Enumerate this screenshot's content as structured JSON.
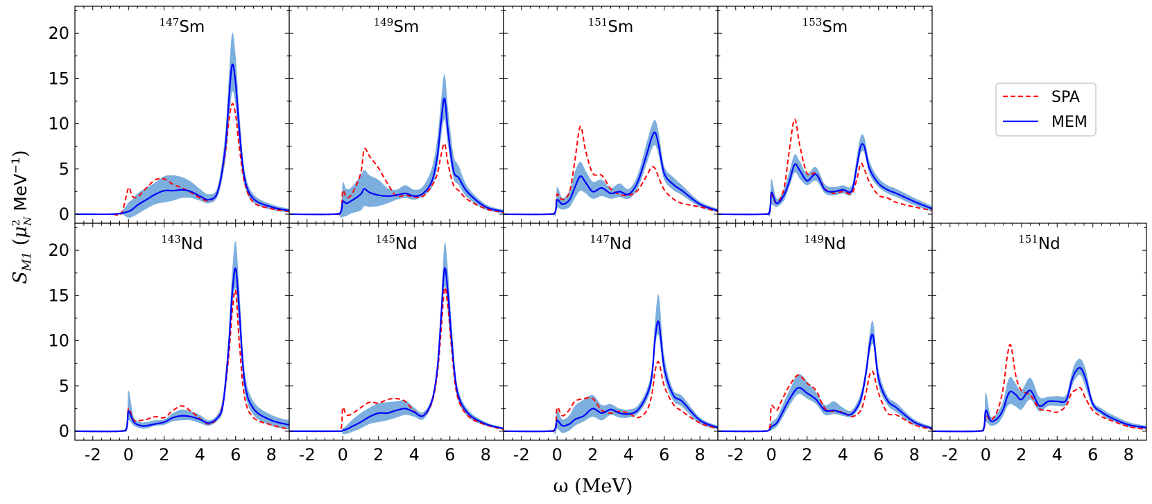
{
  "figure": {
    "xlabel": "ω (MeV)",
    "ylabel": "S_M1 (μ_N² MeV⁻¹)",
    "legend": [
      {
        "name": "SPA",
        "color": "#ff0000",
        "style": "dashed"
      },
      {
        "name": "MEM",
        "color": "#0000ff",
        "style": "solid"
      }
    ],
    "band_color": "#5b9bd5"
  },
  "chart_data": {
    "type": "line",
    "xlim": [
      -3,
      9
    ],
    "ylim": [
      -1,
      23
    ],
    "xticks": [
      -2,
      0,
      2,
      4,
      6,
      8
    ],
    "yticks": [
      0,
      5,
      10,
      15,
      20
    ],
    "legend_position": "right of top row",
    "panels": [
      {
        "nucleus": "Sm",
        "A": "147",
        "x": [
          -3,
          -1,
          -0.4,
          0,
          0.2,
          0.5,
          1,
          1.5,
          2,
          2.5,
          3,
          3.5,
          4,
          4.5,
          5,
          5.4,
          5.6,
          5.8,
          6,
          6.2,
          6.5,
          7,
          8,
          9
        ],
        "spa": [
          0,
          0,
          0.1,
          2.9,
          2.0,
          1.9,
          2.9,
          3.8,
          3.9,
          3.3,
          2.9,
          2.4,
          1.8,
          1.5,
          2.5,
          6.5,
          10,
          12.2,
          11,
          7.5,
          3.5,
          1.3,
          0.6,
          0.3
        ],
        "mem": [
          0,
          0,
          0.1,
          0.3,
          0.5,
          1,
          1.6,
          2.2,
          2.6,
          2.6,
          2.7,
          2.5,
          2.0,
          1.6,
          2.5,
          7,
          12,
          16.5,
          14.5,
          9.5,
          4,
          1.7,
          0.8,
          0.4
        ],
        "lo": [
          0,
          0,
          0,
          -0.4,
          -0.3,
          0,
          0.6,
          1.1,
          1.3,
          1.5,
          1.8,
          1.8,
          1.5,
          1.2,
          2,
          5.6,
          9.5,
          13.5,
          12,
          7.8,
          3.2,
          1.3,
          0.5,
          0.2
        ],
        "hi": [
          0,
          0,
          0.3,
          1.3,
          1.6,
          2.3,
          2.9,
          3.5,
          4.2,
          4.3,
          4.1,
          3.6,
          2.8,
          2.2,
          3.1,
          8.5,
          14.5,
          20,
          17.5,
          11.5,
          4.9,
          2.2,
          1.1,
          0.6
        ]
      },
      {
        "nucleus": "Sm",
        "A": "149",
        "x": [
          -3,
          -0.5,
          -0.1,
          0,
          0.2,
          0.5,
          1,
          1.2,
          1.5,
          2,
          2.5,
          3,
          3.5,
          4,
          4.5,
          5,
          5.3,
          5.5,
          5.7,
          5.9,
          6.2,
          6.5,
          7,
          8,
          9
        ],
        "spa": [
          0,
          0,
          0.3,
          2.6,
          1.9,
          2.2,
          4.5,
          7.2,
          6.4,
          5.1,
          3.4,
          2.0,
          2.1,
          1.9,
          2.0,
          3.2,
          4.5,
          6.5,
          7.8,
          5.5,
          3.2,
          2.6,
          1.6,
          0.6,
          0.2
        ],
        "mem": [
          0,
          0,
          0.3,
          1.4,
          1.2,
          1.5,
          2.2,
          2.8,
          2.4,
          2.1,
          2.0,
          2.1,
          2.3,
          2.0,
          2.3,
          3.7,
          6.5,
          10.2,
          12.8,
          9.0,
          4.8,
          4.0,
          2.4,
          0.8,
          0.3
        ],
        "lo": [
          0,
          0,
          -0.4,
          -0.3,
          -0.2,
          0.1,
          0.4,
          0.9,
          0.8,
          0.9,
          1.2,
          1.6,
          1.8,
          1.6,
          2.0,
          3.0,
          5.3,
          8.5,
          10.5,
          7.5,
          4.0,
          3.2,
          1.8,
          0.5,
          0.1
        ],
        "hi": [
          0,
          0,
          1.0,
          3.5,
          2.8,
          3.0,
          4.3,
          4.9,
          4.3,
          3.8,
          2.9,
          2.7,
          3.2,
          2.7,
          3.1,
          5.2,
          8.5,
          12.5,
          15.5,
          11.5,
          6.6,
          5.3,
          3.0,
          1.1,
          0.5
        ]
      },
      {
        "nucleus": "Sm",
        "A": "151",
        "x": [
          -3,
          -0.5,
          -0.1,
          0,
          0.3,
          0.7,
          1,
          1.3,
          1.6,
          2,
          2.5,
          3,
          3.5,
          4,
          4.5,
          5,
          5.3,
          5.5,
          5.7,
          6,
          6.5,
          7,
          8,
          9
        ],
        "spa": [
          0,
          0,
          0.3,
          2.2,
          1.6,
          2.5,
          6,
          9.7,
          7,
          4.5,
          4.3,
          2.8,
          2.2,
          2.1,
          2.6,
          4.2,
          5.2,
          5.0,
          4.0,
          2.7,
          1.7,
          1.2,
          0.8,
          0.3
        ],
        "mem": [
          0,
          0,
          0.3,
          1.6,
          1.1,
          1.6,
          3.0,
          4.2,
          3.5,
          2.5,
          2.9,
          2.3,
          2.5,
          2.2,
          3.5,
          6.5,
          8.5,
          9.0,
          7.5,
          4.5,
          3.3,
          2.6,
          1.1,
          0.4
        ],
        "lo": [
          0,
          0,
          -0.2,
          0.7,
          0.5,
          0.8,
          1.8,
          2.6,
          2.3,
          1.7,
          2.0,
          1.7,
          1.9,
          1.7,
          2.8,
          5.5,
          7.2,
          7.6,
          6.4,
          3.8,
          2.7,
          2.1,
          0.8,
          0.2
        ],
        "hi": [
          0,
          0,
          0.6,
          3.0,
          1.8,
          2.6,
          4.7,
          5.8,
          4.8,
          3.6,
          3.8,
          2.9,
          3.4,
          2.8,
          4.3,
          7.8,
          9.8,
          10.4,
          8.9,
          5.3,
          4.1,
          3.2,
          1.4,
          0.6
        ]
      },
      {
        "nucleus": "Sm",
        "A": "153",
        "x": [
          -3,
          -0.5,
          -0.1,
          0,
          0.3,
          0.7,
          1,
          1.3,
          1.6,
          2,
          2.5,
          3,
          3.5,
          4,
          4.5,
          4.8,
          5,
          5.2,
          5.5,
          6,
          6.5,
          7,
          8,
          9
        ],
        "spa": [
          0,
          0,
          0.2,
          2.1,
          1.2,
          2.8,
          7,
          10.5,
          7.5,
          4.5,
          4.5,
          2.8,
          2.3,
          2.5,
          2.3,
          4,
          5.6,
          5,
          3.5,
          2.1,
          1.8,
          1.3,
          0.8,
          0.4
        ],
        "mem": [
          0,
          0,
          0.3,
          2.4,
          1.2,
          2.1,
          3.6,
          5.5,
          4.8,
          3.7,
          4.4,
          2.7,
          2.5,
          2.7,
          2.6,
          5.5,
          7.5,
          7.5,
          5.0,
          3.4,
          2.7,
          2.3,
          1.4,
          0.6
        ],
        "lo": [
          0,
          0,
          -0.2,
          1.0,
          0.8,
          1.5,
          3.0,
          4.6,
          3.9,
          3.2,
          3.7,
          2.3,
          2.1,
          2.3,
          2.2,
          4.8,
          6.7,
          6.8,
          4.4,
          3.0,
          2.3,
          1.9,
          1.0,
          0.3
        ],
        "hi": [
          0,
          0,
          1.0,
          3.9,
          1.7,
          2.8,
          4.7,
          6.6,
          5.8,
          4.5,
          5.2,
          3.3,
          3.0,
          3.2,
          3.2,
          6.6,
          8.6,
          8.5,
          5.8,
          4.0,
          3.2,
          2.8,
          1.8,
          0.9
        ]
      },
      {
        "nucleus": "Nd",
        "A": "143",
        "x": [
          -3,
          -0.5,
          -0.1,
          0,
          0.3,
          0.7,
          1,
          1.5,
          2,
          2.5,
          3,
          3.5,
          4,
          4.5,
          5,
          5.3,
          5.6,
          5.8,
          6,
          6.2,
          6.5,
          7,
          8,
          9
        ],
        "spa": [
          0,
          0,
          0.4,
          2.5,
          1.2,
          1.2,
          1.3,
          1.6,
          1.5,
          2.3,
          2.8,
          2.2,
          1.4,
          0.8,
          1.5,
          3.2,
          8,
          13,
          15.5,
          10,
          3.8,
          1.5,
          0.7,
          0.2
        ],
        "mem": [
          0,
          0,
          0.4,
          2.2,
          1.0,
          0.6,
          0.6,
          0.8,
          1.0,
          1.5,
          1.7,
          1.6,
          1.3,
          0.9,
          1.5,
          3,
          9,
          15,
          18,
          13.5,
          5.5,
          2.5,
          1.2,
          0.7
        ],
        "lo": [
          0,
          0,
          0,
          1.2,
          0.6,
          0.3,
          0.3,
          0.6,
          0.7,
          1.1,
          1.2,
          1.2,
          0.9,
          0.6,
          1.2,
          2.5,
          8,
          13.5,
          15.8,
          11.5,
          4.5,
          1.8,
          0.6,
          0.2
        ],
        "hi": [
          0,
          0,
          1.2,
          4.5,
          1.6,
          1.0,
          1.0,
          1.2,
          1.3,
          2.0,
          2.4,
          2.2,
          1.8,
          1.2,
          1.9,
          4,
          10.5,
          17.5,
          21,
          16,
          6.8,
          3.3,
          1.8,
          1.2
        ]
      },
      {
        "nucleus": "Nd",
        "A": "145",
        "x": [
          -3,
          -0.5,
          -0.1,
          0,
          0.2,
          0.5,
          1,
          1.5,
          2,
          2.5,
          3,
          3.5,
          4,
          4.5,
          5,
          5.3,
          5.5,
          5.7,
          5.9,
          6.1,
          6.4,
          7,
          8,
          9
        ],
        "spa": [
          0,
          0,
          0.3,
          2.6,
          1.8,
          1.9,
          2.6,
          3.2,
          3.1,
          3.5,
          3.6,
          3.3,
          2.2,
          1.7,
          3.2,
          6.5,
          11,
          15.8,
          13.5,
          9,
          4,
          1.7,
          0.7,
          0.2
        ],
        "mem": [
          0,
          0,
          0,
          0.1,
          0.2,
          0.5,
          1.0,
          1.6,
          2.0,
          2.0,
          2.3,
          2.5,
          2.1,
          1.7,
          3.4,
          7,
          12.5,
          18,
          15,
          10,
          4.5,
          2.0,
          0.8,
          0.3
        ],
        "lo": [
          0,
          0,
          0,
          -0.3,
          -0.3,
          -0.1,
          0.3,
          0.8,
          1.0,
          1.2,
          1.5,
          1.8,
          1.6,
          1.3,
          3.0,
          6.2,
          11,
          16,
          13,
          8.5,
          3.8,
          1.6,
          0.6,
          0.2
        ],
        "hi": [
          0,
          0,
          0,
          0.3,
          0.6,
          1.2,
          2.0,
          2.6,
          3.1,
          3.2,
          3.3,
          3.4,
          2.6,
          2.1,
          3.8,
          7.8,
          14,
          20.8,
          17.5,
          11.8,
          5.2,
          2.4,
          1.0,
          0.4
        ]
      },
      {
        "nucleus": "Nd",
        "A": "147",
        "x": [
          -3,
          -0.5,
          -0.1,
          0,
          0.3,
          0.7,
          1,
          1.5,
          2,
          2.5,
          3,
          3.5,
          4,
          4.5,
          5,
          5.3,
          5.5,
          5.7,
          6,
          6.5,
          7,
          8,
          9
        ],
        "spa": [
          0,
          0,
          0.3,
          2.6,
          1.7,
          2.4,
          3.3,
          3.6,
          3.6,
          2.3,
          2.0,
          2.2,
          2.0,
          1.5,
          2.2,
          4,
          6.8,
          7.6,
          5,
          3,
          2.2,
          0.9,
          0.3
        ],
        "mem": [
          0,
          0,
          0.3,
          1.2,
          0.6,
          0.8,
          1.3,
          1.7,
          2.5,
          2.0,
          2.4,
          2.0,
          1.9,
          2.3,
          3.9,
          6,
          10.5,
          12,
          7,
          4,
          3.3,
          1.2,
          0.4
        ],
        "lo": [
          0,
          0,
          -0.3,
          0.3,
          -0.2,
          0.1,
          0.6,
          1.1,
          1.6,
          1.2,
          1.8,
          1.5,
          1.5,
          1.9,
          3.3,
          5.2,
          9.5,
          10.5,
          6,
          3.4,
          2.7,
          0.8,
          0.2
        ],
        "hi": [
          0,
          0,
          0.8,
          2.4,
          1.3,
          1.8,
          2.8,
          3.5,
          4.0,
          2.9,
          3.0,
          2.5,
          2.4,
          2.8,
          4.5,
          7,
          12.5,
          15,
          8.3,
          4.6,
          3.9,
          1.5,
          0.6
        ]
      },
      {
        "nucleus": "Nd",
        "A": "149",
        "x": [
          -3,
          -0.5,
          -0.1,
          0,
          0.3,
          0.6,
          1,
          1.5,
          2,
          2.5,
          3,
          3.5,
          4,
          4.5,
          5,
          5.3,
          5.5,
          5.7,
          6,
          6.5,
          7,
          8,
          9
        ],
        "spa": [
          0,
          0,
          0.4,
          2.8,
          2.3,
          3.5,
          5.0,
          6.2,
          5.3,
          4.5,
          2.5,
          2.2,
          2.1,
          1.6,
          2.3,
          4.3,
          6.2,
          6.5,
          4.2,
          2.0,
          1.8,
          0.7,
          0.2
        ],
        "mem": [
          0,
          0,
          0.2,
          0.5,
          0.9,
          2.0,
          3.5,
          4.8,
          4.2,
          3.5,
          2.3,
          2.3,
          2.0,
          1.9,
          3.5,
          6.5,
          9.5,
          10.5,
          5.8,
          3.4,
          2.6,
          1.0,
          0.3
        ],
        "lo": [
          0,
          0,
          0,
          0.1,
          0.5,
          1.4,
          2.8,
          4.1,
          3.6,
          3.0,
          1.8,
          1.9,
          1.7,
          1.6,
          3.0,
          5.8,
          8.5,
          9.5,
          5.0,
          2.9,
          2.1,
          0.7,
          0.2
        ],
        "hi": [
          0,
          0,
          0.4,
          1.0,
          1.5,
          2.8,
          4.5,
          6.3,
          5.5,
          4.3,
          2.9,
          3.3,
          2.6,
          2.3,
          4.2,
          7.3,
          10.8,
          12,
          6.8,
          3.9,
          3.1,
          1.3,
          0.5
        ]
      },
      {
        "nucleus": "Nd",
        "A": "151",
        "x": [
          -3,
          -0.5,
          -0.1,
          0,
          0.3,
          0.7,
          1,
          1.2,
          1.4,
          1.7,
          2,
          2.5,
          3,
          3.5,
          4,
          4.5,
          4.8,
          5,
          5.3,
          5.6,
          6,
          6.5,
          7,
          8,
          9
        ],
        "spa": [
          0,
          0,
          0.3,
          1.8,
          1.2,
          2.5,
          5,
          8.2,
          9.5,
          6,
          4.5,
          4.0,
          2.5,
          2.3,
          2.1,
          2.8,
          4.2,
          4.5,
          4.8,
          3.6,
          2.3,
          1.6,
          1.2,
          0.5,
          0.2
        ],
        "mem": [
          0,
          0,
          0.4,
          2.3,
          1.1,
          1.5,
          2.5,
          3.8,
          4.4,
          4.0,
          3.5,
          4.5,
          2.8,
          3.3,
          3.3,
          3.4,
          5.5,
          6.5,
          7.0,
          5.8,
          3.0,
          2.1,
          1.5,
          0.7,
          0.4
        ],
        "lo": [
          0,
          0,
          0,
          1.0,
          0.6,
          0.9,
          1.8,
          2.7,
          3.0,
          2.7,
          2.4,
          3.5,
          2.2,
          2.8,
          2.8,
          2.9,
          4.8,
          5.7,
          6.2,
          4.8,
          2.6,
          1.8,
          1.2,
          0.5,
          0.2
        ],
        "hi": [
          0,
          0,
          1.0,
          4.3,
          1.6,
          2.2,
          3.5,
          5.3,
          6.0,
          5.2,
          4.5,
          5.9,
          3.8,
          3.8,
          3.9,
          4.0,
          6.3,
          7.5,
          8.0,
          6.8,
          3.4,
          2.5,
          1.9,
          1.0,
          0.6
        ]
      }
    ]
  }
}
